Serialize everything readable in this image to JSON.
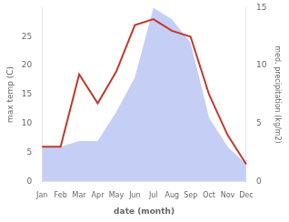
{
  "chart_data": {
    "type": "line",
    "categories": [
      "Jan",
      "Feb",
      "Mar",
      "Apr",
      "May",
      "Jun",
      "Jul",
      "Aug",
      "Sep",
      "Oct",
      "Nov",
      "Dec"
    ],
    "series": [
      {
        "type": "area",
        "color": "#c5cff5",
        "axis": "y2",
        "values": [
          3,
          3,
          3.5,
          3.5,
          6,
          9,
          15,
          14,
          12,
          5.5,
          3,
          1.5
        ]
      },
      {
        "type": "line",
        "color": "#c0392b",
        "values": [
          6,
          6,
          18.5,
          13.5,
          19,
          27,
          28,
          26,
          25,
          15,
          8,
          3
        ]
      }
    ],
    "xlabel": "date (month)",
    "ylabel": "max temp (C)",
    "y2label": "med. precipitation (kg/m2)",
    "ylim": [
      0,
      30
    ],
    "yticks": [
      0,
      5,
      10,
      15,
      20,
      25
    ],
    "y2lim": [
      0,
      15
    ],
    "y2ticks": [
      0,
      5,
      10,
      15
    ],
    "grid": false
  }
}
